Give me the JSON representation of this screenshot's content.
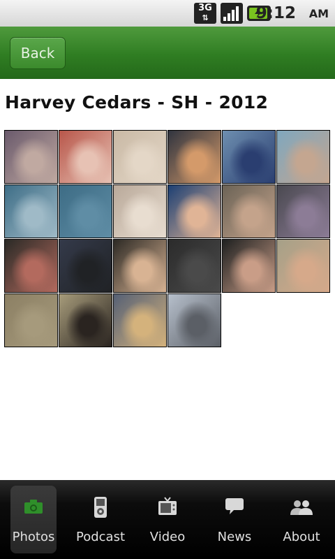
{
  "status_bar": {
    "network": "3G",
    "time": "9:12",
    "ampm": "AM"
  },
  "header": {
    "back_label": "Back"
  },
  "page": {
    "title": "Harvey Cedars - SH - 2012"
  },
  "photos": [
    {
      "colors": [
        "#6a5a6c",
        "#c0a9a1"
      ]
    },
    {
      "colors": [
        "#b8564a",
        "#e7c2b4"
      ]
    },
    {
      "colors": [
        "#c9b9a5",
        "#e4d7c7"
      ]
    },
    {
      "colors": [
        "#30343f",
        "#d49a6a"
      ]
    },
    {
      "colors": [
        "#6e8fb0",
        "#2a3e70"
      ]
    },
    {
      "colors": [
        "#7fa7be",
        "#c4a690"
      ]
    },
    {
      "colors": [
        "#3e6e87",
        "#9fbac7"
      ]
    },
    {
      "colors": [
        "#3d6c85",
        "#5f8da5"
      ]
    },
    {
      "colors": [
        "#b9a99a",
        "#e8ddd0"
      ]
    },
    {
      "colors": [
        "#1c3f73",
        "#e0b496"
      ]
    },
    {
      "colors": [
        "#6b6356",
        "#c4a38b"
      ]
    },
    {
      "colors": [
        "#4a4950",
        "#8c7c96"
      ]
    },
    {
      "colors": [
        "#2a2a26",
        "#b36a5e"
      ]
    },
    {
      "colors": [
        "#343a4a",
        "#202225"
      ]
    },
    {
      "colors": [
        "#2d2a25",
        "#d8b393"
      ]
    },
    {
      "colors": [
        "#2b2b2b",
        "#4a4a4a"
      ]
    },
    {
      "colors": [
        "#1e2020",
        "#c99d87"
      ]
    },
    {
      "colors": [
        "#a5a088",
        "#d6a98a"
      ]
    },
    {
      "colors": [
        "#8c8064",
        "#a69a7c"
      ]
    },
    {
      "colors": [
        "#a79c7b",
        "#2a2420"
      ]
    },
    {
      "colors": [
        "#556075",
        "#d4b27c"
      ]
    },
    {
      "colors": [
        "#b7c0cc",
        "#5b5f66"
      ]
    }
  ],
  "tabs": [
    {
      "label": "Photos",
      "icon": "camera-icon",
      "active": true
    },
    {
      "label": "Podcast",
      "icon": "ipod-icon",
      "active": false
    },
    {
      "label": "Video",
      "icon": "tv-icon",
      "active": false
    },
    {
      "label": "News",
      "icon": "speech-bubble-icon",
      "active": false
    },
    {
      "label": "About",
      "icon": "people-icon",
      "active": false
    }
  ],
  "colors": {
    "header_green": "#2f7d22",
    "active_icon": "#2f8f2a"
  }
}
